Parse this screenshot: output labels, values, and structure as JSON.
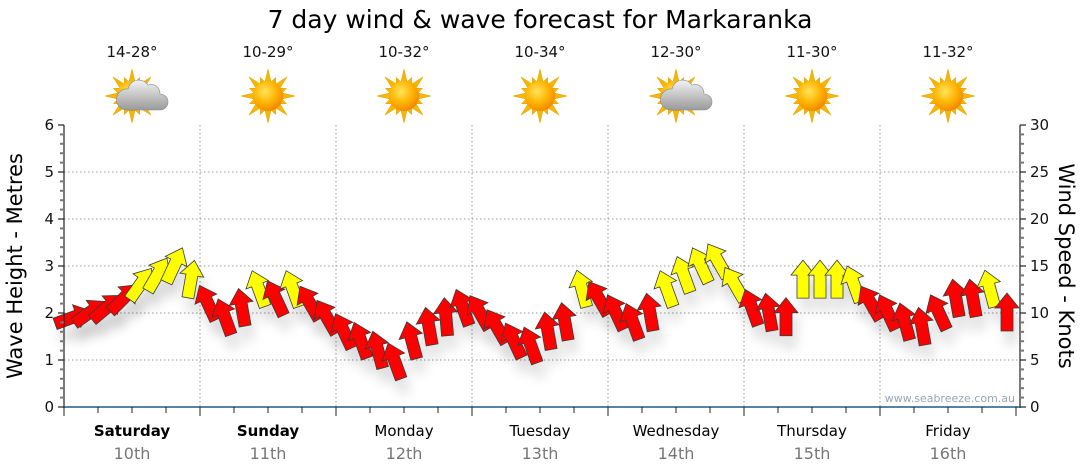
{
  "chart_data": {
    "type": "scatter",
    "title": "7 day wind & wave forecast for Markaranka",
    "ylabel_left": "Wave Height - Metres",
    "ylabel_right": "Wind Speed - Knots",
    "ylim_left": [
      0,
      6
    ],
    "ylim_right": [
      0,
      30
    ],
    "yticks_left": [
      "0",
      "1",
      "2",
      "3",
      "4",
      "5",
      "6"
    ],
    "yticks_right": [
      "0",
      "5",
      "10",
      "15",
      "20",
      "25",
      "30"
    ],
    "grid": true,
    "watermark": "www.seabreeze.com.au",
    "days": [
      {
        "name": "Saturday",
        "date": "10th",
        "temp": "14-28°",
        "weather": "partly-cloudy",
        "bold": true
      },
      {
        "name": "Sunday",
        "date": "11th",
        "temp": "10-29°",
        "weather": "sunny",
        "bold": true
      },
      {
        "name": "Monday",
        "date": "12th",
        "temp": "10-32°",
        "weather": "sunny",
        "bold": false
      },
      {
        "name": "Tuesday",
        "date": "13th",
        "temp": "10-34°",
        "weather": "sunny",
        "bold": false
      },
      {
        "name": "Wednesday",
        "date": "14th",
        "temp": "12-30°",
        "weather": "partly-cloudy",
        "bold": false
      },
      {
        "name": "Thursday",
        "date": "15th",
        "temp": "11-30°",
        "weather": "sunny",
        "bold": false
      },
      {
        "name": "Friday",
        "date": "16th",
        "temp": "11-32°",
        "weather": "sunny",
        "bold": false
      }
    ],
    "wind_interval_hours": 3,
    "wind_colors": {
      "light": "#ff0000",
      "strong": "#ffff00",
      "threshold_knots": 12
    },
    "wind_speed_knots": [
      9.5,
      10,
      10.5,
      11.5,
      13,
      14,
      15,
      13.5,
      11,
      9.5,
      10.5,
      12.5,
      11.5,
      12.5,
      11,
      9.5,
      8,
      7,
      6,
      4.8,
      7,
      8.5,
      9.5,
      10.5,
      10,
      8.5,
      7,
      6.5,
      8,
      9,
      12.5,
      11.5,
      10,
      9,
      10,
      12.5,
      14,
      15,
      15.5,
      13,
      10.5,
      10,
      9.5,
      13.5,
      13.5,
      13.5,
      13,
      11,
      10,
      9,
      8.5,
      10,
      11.5,
      11.5,
      12.5,
      10
    ],
    "wind_arrow_heading_deg": [
      70,
      55,
      50,
      45,
      35,
      30,
      25,
      10,
      -25,
      -20,
      -10,
      -20,
      -25,
      -20,
      -30,
      -30,
      -25,
      -20,
      -15,
      -20,
      -15,
      -10,
      -5,
      -20,
      -30,
      -30,
      -25,
      -20,
      -10,
      -10,
      -15,
      -30,
      -25,
      -20,
      -10,
      -20,
      -20,
      -25,
      -30,
      -30,
      -20,
      -10,
      0,
      0,
      0,
      0,
      -20,
      -30,
      -25,
      -15,
      -10,
      -25,
      -10,
      -10,
      -15,
      0
    ]
  }
}
